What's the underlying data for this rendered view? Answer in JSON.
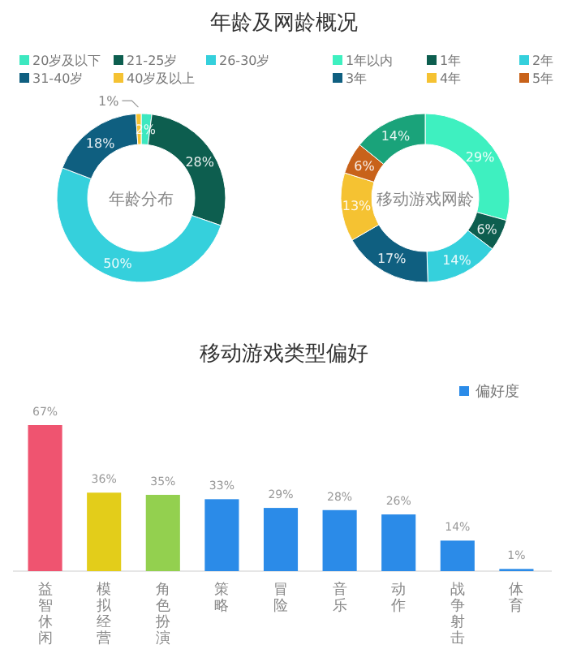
{
  "chart_data": [
    {
      "type": "donut",
      "title": "年龄及网龄概况",
      "categories": [
        "20岁及以下",
        "21-25岁",
        "26-30岁",
        "31-40岁",
        "40岁及以上"
      ],
      "values": [
        2,
        28,
        50,
        18,
        1
      ],
      "value_labels": [
        "2%",
        "28%",
        "50%",
        "18%",
        "1%"
      ],
      "colors": [
        "#3de8c0",
        "#0d5e4f",
        "#35d0dc",
        "#0f5f80",
        "#f5c232"
      ],
      "annotations": [
        "年龄分布"
      ],
      "legend": "top"
    },
    {
      "type": "donut",
      "categories": [
        "1年以内",
        "1年",
        "2年",
        "3年",
        "4年",
        "5年",
        null
      ],
      "values": [
        29,
        6,
        14,
        17,
        13,
        6,
        14
      ],
      "value_labels": [
        "29%",
        "6%",
        "14%",
        "17%",
        "13%",
        "6%",
        "14%"
      ],
      "colors": [
        "#3ef0c0",
        "#0d5e4f",
        "#35d0dc",
        "#0f5f80",
        "#f5c232",
        "#c8621a",
        "#1aa37a"
      ],
      "annotations": [
        "移动游戏网龄"
      ],
      "legend": "top"
    },
    {
      "type": "bar",
      "title": "移动游戏类型偏好",
      "categories": [
        "益智休闲",
        "模拟经营",
        "角色扮演",
        "策略",
        "冒险",
        "音乐",
        "动作",
        "战争射击",
        "体育"
      ],
      "series": [
        {
          "name": "偏好度",
          "color": "#2b8be8",
          "colors": [
            "#ef5470",
            "#e3cd1a",
            "#93d04f",
            "#2b8be8",
            "#2b8be8",
            "#2b8be8",
            "#2b8be8",
            "#2b8be8",
            "#2b8be8"
          ],
          "values": [
            67,
            36,
            35,
            33,
            29,
            28,
            26,
            14,
            1
          ],
          "value_labels": [
            "67%",
            "36%",
            "35%",
            "33%",
            "29%",
            "28%",
            "26%",
            "14%",
            "1%"
          ]
        }
      ],
      "legend": "top right"
    }
  ]
}
